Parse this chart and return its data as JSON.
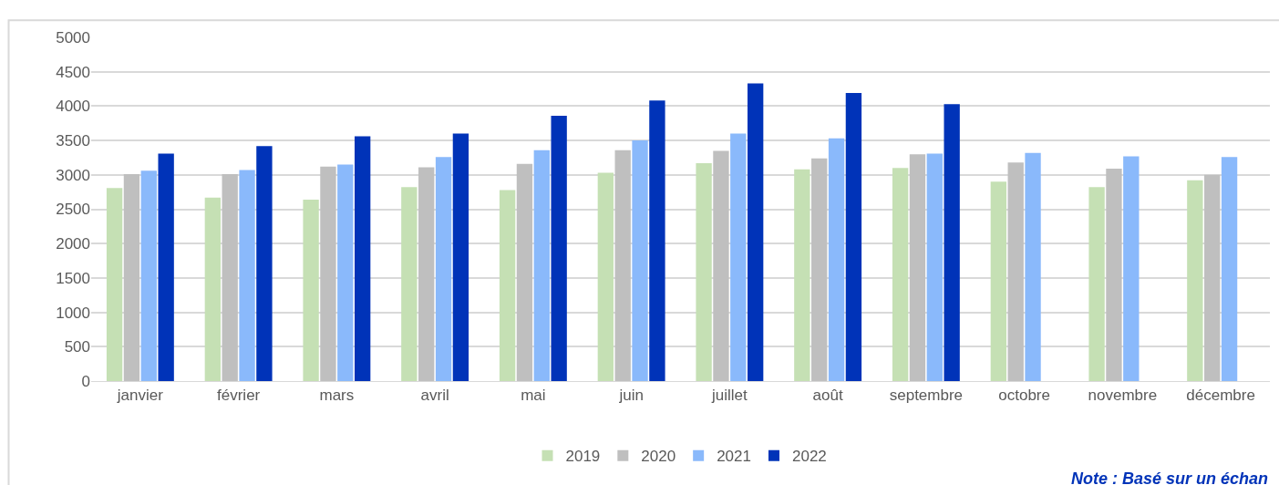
{
  "chart_data": {
    "type": "bar",
    "categories": [
      "janvier",
      "février",
      "mars",
      "avril",
      "mai",
      "juin",
      "juillet",
      "août",
      "septembre",
      "octobre",
      "novembre",
      "décembre"
    ],
    "series": [
      {
        "name": "2019",
        "color": "#c5e0b4",
        "values": [
          2810,
          2670,
          2640,
          2820,
          2780,
          3030,
          3170,
          3080,
          3100,
          2900,
          2820,
          2920
        ]
      },
      {
        "name": "2020",
        "color": "#bfbfbf",
        "values": [
          3010,
          3010,
          3120,
          3110,
          3160,
          3360,
          3350,
          3240,
          3300,
          3180,
          3090,
          3000
        ]
      },
      {
        "name": "2021",
        "color": "#8ab9fb",
        "values": [
          3060,
          3070,
          3150,
          3260,
          3360,
          3500,
          3600,
          3530,
          3310,
          3320,
          3270,
          3260
        ]
      },
      {
        "name": "2022",
        "color": "#0033b8",
        "values": [
          3310,
          3420,
          3560,
          3600,
          3860,
          4080,
          4330,
          4190,
          4030,
          null,
          null,
          null
        ]
      }
    ],
    "ylim": [
      0,
      5000
    ],
    "yticks": [
      0,
      500,
      1000,
      1500,
      2000,
      2500,
      3000,
      3500,
      4000,
      4500,
      5000
    ],
    "grid": "y",
    "legend": "bottom",
    "annotations": [
      "Note : Basé sur un échan"
    ]
  }
}
